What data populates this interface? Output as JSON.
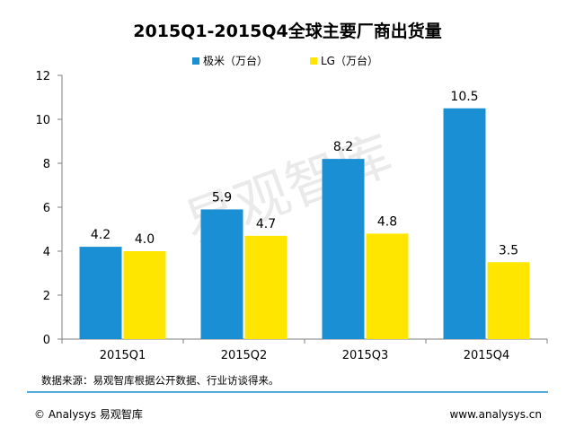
{
  "chart_data": {
    "type": "bar",
    "title": "2015Q1-2015Q4全球主要厂商出货量",
    "categories": [
      "2015Q1",
      "2015Q2",
      "2015Q3",
      "2015Q4"
    ],
    "series": [
      {
        "name": "极米（万台）",
        "values": [
          4.2,
          5.9,
          8.2,
          10.5
        ],
        "color": "#1b8fd3",
        "value_labels": [
          "4.2",
          "5.9",
          "8.2",
          "10.5"
        ]
      },
      {
        "name": "LG（万台）",
        "values": [
          4.0,
          4.7,
          4.8,
          3.5
        ],
        "color": "#ffe600",
        "value_labels": [
          "4.0",
          "4.7",
          "4.8",
          "3.5"
        ]
      }
    ],
    "ylim": [
      0,
      12
    ],
    "yticks": [
      "0",
      "2",
      "4",
      "6",
      "8",
      "10",
      "12"
    ],
    "legend_position": "top-center",
    "grid": false
  },
  "source_note": "数据来源：易观智库根据公开数据、行业访谈得来。",
  "watermark": "易观智库",
  "footer": {
    "copyright": "© Analysys 易观智库",
    "website": "www.analysys.cn"
  },
  "colors": {
    "footer_line": "#1b8fd3",
    "axis": "#7f7f7f"
  }
}
